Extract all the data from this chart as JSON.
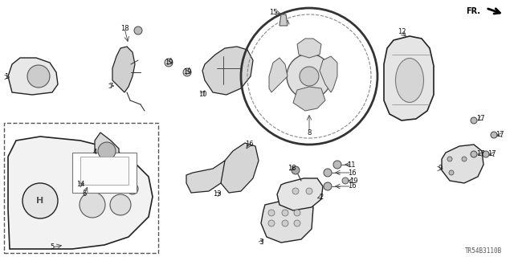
{
  "bg_color": "#ffffff",
  "part_number": "TR54B3110B",
  "fig_width": 6.4,
  "fig_height": 3.2,
  "dpi": 100
}
